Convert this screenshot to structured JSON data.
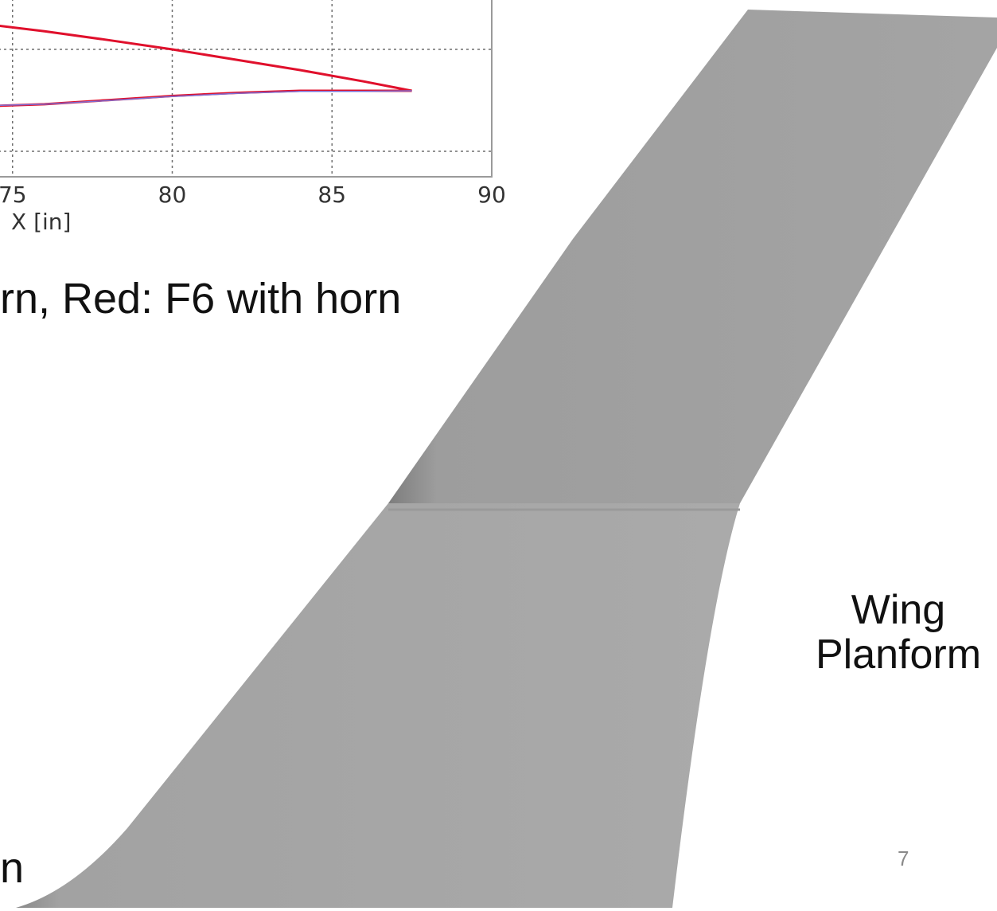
{
  "chart_data": {
    "type": "line",
    "xlabel": "X [in]",
    "xlim": [
      70,
      90
    ],
    "x_ticks": [
      75,
      80,
      85,
      90
    ],
    "grid": true,
    "series": [
      {
        "color": "#e0102c",
        "x": [
          70,
          72,
          74,
          76,
          78,
          80,
          82,
          84,
          86,
          87.5
        ],
        "y": [
          1.0,
          0.85,
          0.7,
          0.55,
          0.38,
          0.2,
          0.0,
          -0.2,
          -0.42,
          -0.6
        ]
      },
      {
        "color": "#e0102c",
        "x": [
          70,
          72,
          74,
          76,
          78,
          80,
          82,
          84,
          86,
          87.5
        ],
        "y": [
          -0.9,
          -0.91,
          -0.9,
          -0.86,
          -0.78,
          -0.7,
          -0.64,
          -0.6,
          -0.6,
          -0.6
        ]
      },
      {
        "color": "#7b6fd6",
        "x": [
          70,
          72,
          74,
          76,
          78,
          80,
          82,
          84,
          86,
          87.5
        ],
        "y": [
          -0.9,
          -0.9,
          -0.89,
          -0.86,
          -0.79,
          -0.71,
          -0.65,
          -0.61,
          -0.61,
          -0.6
        ]
      }
    ]
  },
  "captions": {
    "legend_fragment": "rn, Red: F6 with horn",
    "planform_line1": "Wing",
    "planform_line2": "Planform",
    "trailing_char": "n",
    "page_number": "7"
  },
  "colors": {
    "wing_light": "#a6a6a6",
    "wing_dark": "#8c8c8c",
    "plot_frame": "#9a9a9a",
    "grid": "#6f6f6f"
  }
}
